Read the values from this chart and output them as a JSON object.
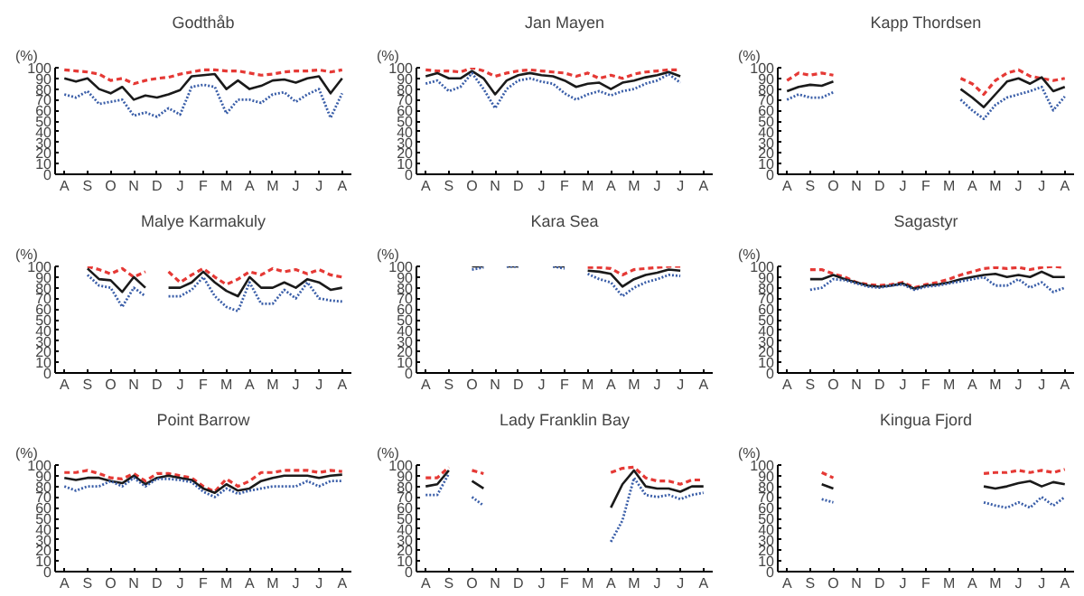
{
  "chart_data": [
    {
      "type": "line",
      "title": "Godthåb",
      "ylabel": "(%)",
      "categories": [
        "A",
        null,
        "S",
        null,
        "O",
        null,
        "N",
        null,
        "D",
        null,
        "J",
        null,
        "F",
        null,
        "M",
        null,
        "A",
        null,
        "M",
        null,
        "J",
        null,
        "J",
        null,
        "A"
      ],
      "ylim": [
        0,
        100
      ],
      "yticks": [
        0,
        10,
        20,
        30,
        40,
        50,
        60,
        70,
        80,
        90,
        100
      ],
      "grid": false,
      "series": [
        {
          "color": "#e53935",
          "line_style": "dashed",
          "values": [
            98,
            97,
            96,
            94,
            88,
            90,
            85,
            88,
            90,
            91,
            94,
            96,
            98,
            98,
            97,
            97,
            95,
            93,
            94,
            96,
            97,
            97,
            98,
            96,
            98
          ]
        },
        {
          "color": "#1a1a1a",
          "line_style": "solid",
          "values": [
            90,
            87,
            90,
            80,
            76,
            82,
            70,
            74,
            72,
            75,
            79,
            92,
            93,
            94,
            80,
            88,
            80,
            83,
            88,
            89,
            86,
            90,
            92,
            76,
            90
          ]
        },
        {
          "color": "#3a5ea8",
          "line_style": "dotted",
          "values": [
            75,
            72,
            78,
            66,
            68,
            70,
            55,
            58,
            54,
            62,
            56,
            82,
            84,
            82,
            57,
            70,
            70,
            67,
            75,
            77,
            68,
            75,
            80,
            53,
            76
          ]
        }
      ]
    },
    {
      "type": "line",
      "title": "Jan Mayen",
      "ylabel": "(%)",
      "categories": [
        "A",
        null,
        "S",
        null,
        "O",
        null,
        "N",
        null,
        "D",
        null,
        "J",
        null,
        "F",
        null,
        "M",
        null,
        "A",
        null,
        "M",
        null,
        "J",
        null,
        "J",
        null,
        "A"
      ],
      "ylim": [
        0,
        100
      ],
      "yticks": [
        0,
        10,
        20,
        30,
        40,
        50,
        60,
        70,
        80,
        90,
        100
      ],
      "grid": false,
      "series": [
        {
          "color": "#e53935",
          "line_style": "dashed",
          "values": [
            98,
            97,
            97,
            96,
            100,
            97,
            92,
            95,
            97,
            98,
            97,
            96,
            95,
            92,
            95,
            90,
            93,
            90,
            94,
            96,
            97,
            98,
            98,
            null,
            null
          ]
        },
        {
          "color": "#1a1a1a",
          "line_style": "solid",
          "values": [
            92,
            95,
            90,
            90,
            97,
            90,
            75,
            88,
            93,
            95,
            93,
            92,
            88,
            82,
            85,
            86,
            80,
            86,
            88,
            91,
            93,
            96,
            92,
            null,
            null
          ]
        },
        {
          "color": "#3a5ea8",
          "line_style": "dotted",
          "values": [
            85,
            88,
            78,
            82,
            95,
            80,
            62,
            80,
            88,
            90,
            87,
            85,
            76,
            70,
            75,
            78,
            74,
            78,
            80,
            85,
            88,
            94,
            86,
            null,
            null
          ]
        }
      ]
    },
    {
      "type": "line",
      "title": "Kapp Thordsen",
      "ylabel": "(%)",
      "categories": [
        "A",
        null,
        "S",
        null,
        "O",
        null,
        "N",
        null,
        "D",
        null,
        "J",
        null,
        "F",
        null,
        "M",
        null,
        "A",
        null,
        "M",
        null,
        "J",
        null,
        "J",
        null,
        "A"
      ],
      "ylim": [
        0,
        100
      ],
      "yticks": [
        0,
        10,
        20,
        30,
        40,
        50,
        60,
        70,
        80,
        90,
        100
      ],
      "grid": false,
      "series": [
        {
          "color": "#e53935",
          "line_style": "dashed",
          "values": [
            88,
            95,
            93,
            95,
            93,
            null,
            null,
            null,
            null,
            null,
            null,
            null,
            null,
            null,
            null,
            90,
            85,
            75,
            88,
            95,
            98,
            92,
            90,
            88,
            90
          ]
        },
        {
          "color": "#1a1a1a",
          "line_style": "solid",
          "values": [
            78,
            82,
            84,
            83,
            87,
            null,
            null,
            null,
            null,
            null,
            null,
            null,
            null,
            null,
            null,
            80,
            72,
            63,
            75,
            87,
            90,
            85,
            91,
            78,
            82
          ]
        },
        {
          "color": "#3a5ea8",
          "line_style": "dotted",
          "values": [
            70,
            75,
            72,
            72,
            77,
            null,
            null,
            null,
            null,
            null,
            null,
            null,
            null,
            null,
            null,
            70,
            60,
            52,
            65,
            72,
            75,
            78,
            82,
            60,
            73
          ]
        }
      ]
    },
    {
      "type": "line",
      "title": "Malye Karmakuly",
      "ylabel": "(%)",
      "categories": [
        "A",
        null,
        "S",
        null,
        "O",
        null,
        "N",
        null,
        "D",
        null,
        "J",
        null,
        "F",
        null,
        "M",
        null,
        "A",
        null,
        "M",
        null,
        "J",
        null,
        "J",
        null,
        "A"
      ],
      "ylim": [
        0,
        100
      ],
      "yticks": [
        0,
        10,
        20,
        30,
        40,
        50,
        60,
        70,
        80,
        90,
        100
      ],
      "grid": false,
      "series": [
        {
          "color": "#e53935",
          "line_style": "dashed",
          "values": [
            null,
            null,
            100,
            97,
            93,
            98,
            90,
            95,
            null,
            95,
            85,
            92,
            98,
            90,
            83,
            88,
            95,
            92,
            98,
            95,
            97,
            93,
            97,
            92,
            90
          ]
        },
        {
          "color": "#1a1a1a",
          "line_style": "solid",
          "values": [
            null,
            null,
            98,
            88,
            87,
            76,
            90,
            80,
            null,
            80,
            80,
            85,
            95,
            85,
            77,
            72,
            90,
            80,
            80,
            85,
            80,
            88,
            85,
            78,
            80
          ]
        },
        {
          "color": "#3a5ea8",
          "line_style": "dotted",
          "values": [
            null,
            null,
            92,
            82,
            80,
            62,
            80,
            72,
            null,
            72,
            72,
            78,
            90,
            72,
            62,
            58,
            85,
            65,
            65,
            78,
            70,
            85,
            70,
            68,
            67
          ]
        }
      ]
    },
    {
      "type": "line",
      "title": "Kara Sea",
      "ylabel": "(%)",
      "categories": [
        "A",
        null,
        "S",
        null,
        "O",
        null,
        "N",
        null,
        "D",
        null,
        "J",
        null,
        "F",
        null,
        "M",
        null,
        "A",
        null,
        "M",
        null,
        "J",
        null,
        "J",
        null,
        "A"
      ],
      "ylim": [
        0,
        100
      ],
      "yticks": [
        0,
        10,
        20,
        30,
        40,
        50,
        60,
        70,
        80,
        90,
        100
      ],
      "grid": false,
      "series": [
        {
          "color": "#e53935",
          "line_style": "dashed",
          "values": [
            null,
            null,
            null,
            null,
            null,
            null,
            null,
            null,
            null,
            null,
            null,
            null,
            null,
            null,
            99,
            99,
            98,
            92,
            97,
            98,
            99,
            100,
            100,
            null,
            null
          ]
        },
        {
          "color": "#1a1a1a",
          "line_style": "solid",
          "values": [
            null,
            null,
            null,
            null,
            100,
            100,
            null,
            100,
            100,
            null,
            null,
            100,
            100,
            null,
            96,
            95,
            93,
            81,
            88,
            92,
            94,
            97,
            96,
            null,
            null
          ]
        },
        {
          "color": "#3a5ea8",
          "line_style": "dotted",
          "values": [
            null,
            null,
            null,
            null,
            97,
            99,
            null,
            100,
            100,
            null,
            null,
            100,
            98,
            null,
            93,
            88,
            85,
            72,
            80,
            85,
            88,
            92,
            91,
            null,
            null
          ]
        }
      ]
    },
    {
      "type": "line",
      "title": "Sagastyr",
      "ylabel": "(%)",
      "categories": [
        "A",
        null,
        "S",
        null,
        "O",
        null,
        "N",
        null,
        "D",
        null,
        "J",
        null,
        "F",
        null,
        "M",
        null,
        "A",
        null,
        "M",
        null,
        "J",
        null,
        "J",
        null,
        "A"
      ],
      "ylim": [
        0,
        100
      ],
      "yticks": [
        0,
        10,
        20,
        30,
        40,
        50,
        60,
        70,
        80,
        90,
        100
      ],
      "grid": false,
      "series": [
        {
          "color": "#e53935",
          "line_style": "dashed",
          "values": [
            null,
            null,
            97,
            97,
            93,
            90,
            85,
            83,
            82,
            83,
            85,
            80,
            83,
            85,
            88,
            92,
            95,
            98,
            99,
            98,
            99,
            97,
            99,
            100,
            99
          ]
        },
        {
          "color": "#1a1a1a",
          "line_style": "solid",
          "values": [
            null,
            null,
            88,
            88,
            92,
            88,
            85,
            82,
            81,
            82,
            84,
            79,
            82,
            83,
            85,
            88,
            90,
            92,
            93,
            90,
            92,
            90,
            95,
            90,
            90
          ]
        },
        {
          "color": "#3a5ea8",
          "line_style": "dotted",
          "values": [
            null,
            null,
            78,
            80,
            88,
            87,
            84,
            81,
            80,
            82,
            83,
            78,
            81,
            82,
            84,
            86,
            88,
            90,
            82,
            82,
            88,
            80,
            85,
            76,
            80
          ]
        }
      ]
    },
    {
      "type": "line",
      "title": "Point Barrow",
      "ylabel": "(%)",
      "categories": [
        "A",
        null,
        "S",
        null,
        "O",
        null,
        "N",
        null,
        "D",
        null,
        "J",
        null,
        "F",
        null,
        "M",
        null,
        "A",
        null,
        "M",
        null,
        "J",
        null,
        "J",
        null,
        "A"
      ],
      "ylim": [
        0,
        100
      ],
      "yticks": [
        0,
        10,
        20,
        30,
        40,
        50,
        60,
        70,
        80,
        90,
        100
      ],
      "grid": false,
      "series": [
        {
          "color": "#e53935",
          "line_style": "dashed",
          "values": [
            93,
            93,
            95,
            92,
            88,
            87,
            92,
            85,
            92,
            92,
            90,
            88,
            80,
            75,
            87,
            80,
            85,
            93,
            93,
            95,
            95,
            95,
            93,
            95,
            94
          ]
        },
        {
          "color": "#1a1a1a",
          "line_style": "solid",
          "values": [
            88,
            86,
            88,
            88,
            85,
            83,
            90,
            82,
            88,
            90,
            88,
            86,
            78,
            74,
            82,
            76,
            78,
            85,
            88,
            90,
            90,
            90,
            88,
            90,
            91
          ]
        },
        {
          "color": "#3a5ea8",
          "line_style": "dotted",
          "values": [
            80,
            76,
            80,
            80,
            85,
            80,
            88,
            80,
            87,
            87,
            86,
            84,
            75,
            70,
            78,
            73,
            76,
            78,
            80,
            80,
            80,
            85,
            80,
            85,
            85
          ]
        }
      ]
    },
    {
      "type": "line",
      "title": "Lady Franklin Bay",
      "ylabel": "(%)",
      "categories": [
        "A",
        null,
        "S",
        null,
        "O",
        null,
        "N",
        null,
        "D",
        null,
        "J",
        null,
        "F",
        null,
        "M",
        null,
        "A",
        null,
        "M",
        null,
        "J",
        null,
        "J",
        null,
        "A"
      ],
      "ylim": [
        0,
        100
      ],
      "yticks": [
        0,
        10,
        20,
        30,
        40,
        50,
        60,
        70,
        80,
        90,
        100
      ],
      "grid": false,
      "series": [
        {
          "color": "#e53935",
          "line_style": "dashed",
          "values": [
            88,
            88,
            98,
            null,
            95,
            92,
            null,
            null,
            null,
            null,
            null,
            null,
            null,
            null,
            null,
            null,
            93,
            97,
            98,
            88,
            85,
            85,
            82,
            86,
            86
          ]
        },
        {
          "color": "#1a1a1a",
          "line_style": "solid",
          "values": [
            80,
            82,
            95,
            null,
            85,
            78,
            null,
            null,
            null,
            null,
            null,
            null,
            null,
            null,
            null,
            null,
            60,
            82,
            95,
            80,
            78,
            78,
            75,
            80,
            80
          ]
        },
        {
          "color": "#3a5ea8",
          "line_style": "dotted",
          "values": [
            72,
            72,
            92,
            null,
            70,
            62,
            null,
            null,
            null,
            null,
            null,
            null,
            null,
            null,
            null,
            null,
            28,
            48,
            88,
            72,
            70,
            72,
            68,
            72,
            74
          ]
        }
      ]
    },
    {
      "type": "line",
      "title": "Kingua Fjord",
      "ylabel": "(%)",
      "categories": [
        "A",
        null,
        "S",
        null,
        "O",
        null,
        "N",
        null,
        "D",
        null,
        "J",
        null,
        "F",
        null,
        "M",
        null,
        "A",
        null,
        "M",
        null,
        "J",
        null,
        "J",
        null,
        "A"
      ],
      "ylim": [
        0,
        100
      ],
      "yticks": [
        0,
        10,
        20,
        30,
        40,
        50,
        60,
        70,
        80,
        90,
        100
      ],
      "grid": false,
      "series": [
        {
          "color": "#e53935",
          "line_style": "dashed",
          "values": [
            null,
            null,
            null,
            93,
            88,
            null,
            null,
            null,
            null,
            null,
            null,
            null,
            null,
            null,
            null,
            null,
            null,
            92,
            93,
            93,
            95,
            93,
            95,
            93,
            96
          ]
        },
        {
          "color": "#1a1a1a",
          "line_style": "solid",
          "values": [
            null,
            null,
            null,
            82,
            78,
            null,
            null,
            null,
            null,
            null,
            null,
            null,
            null,
            null,
            null,
            null,
            null,
            80,
            78,
            80,
            83,
            85,
            80,
            84,
            82
          ]
        },
        {
          "color": "#3a5ea8",
          "line_style": "dotted",
          "values": [
            null,
            null,
            null,
            68,
            65,
            null,
            null,
            null,
            null,
            null,
            null,
            null,
            null,
            null,
            null,
            null,
            null,
            65,
            62,
            60,
            65,
            60,
            70,
            62,
            70
          ]
        }
      ]
    }
  ]
}
